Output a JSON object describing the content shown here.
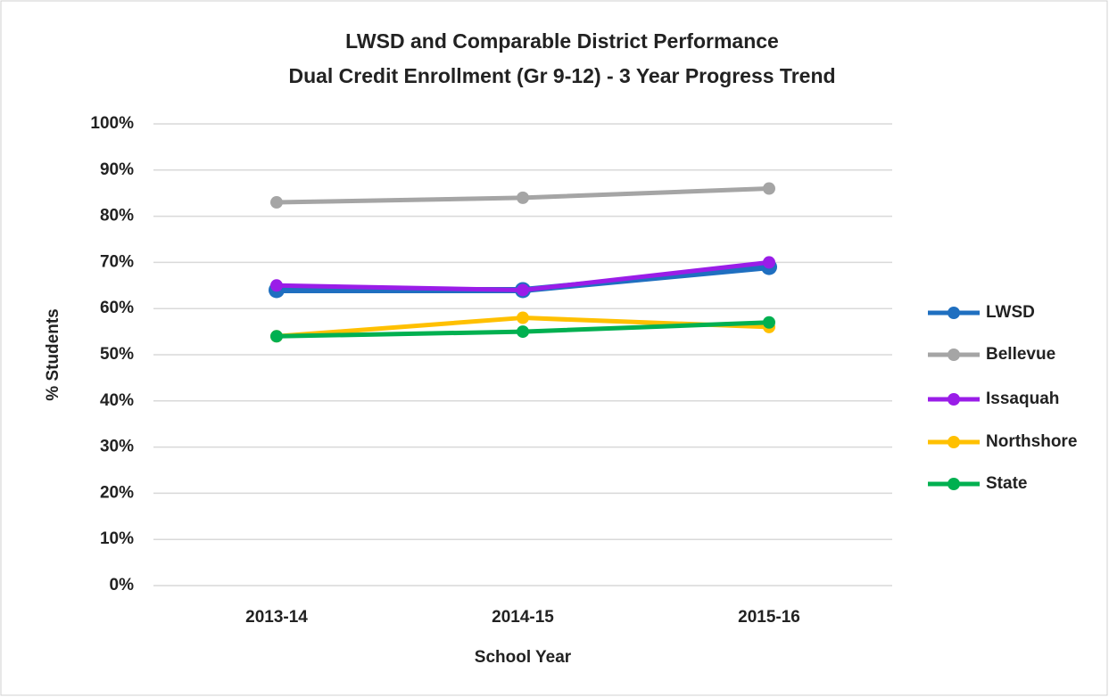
{
  "chart_data": {
    "type": "line",
    "title": "LWSD and Comparable District Performance",
    "subtitle": "Dual Credit Enrollment (Gr 9-12) - 3 Year Progress Trend",
    "x_label": "School Year",
    "y_label": "% Students",
    "categories": [
      "2013-14",
      "2014-15",
      "2015-16"
    ],
    "series": [
      {
        "name": "LWSD",
        "color": "#1f6fc0",
        "values": [
          64,
          64,
          69
        ]
      },
      {
        "name": "Bellevue",
        "color": "#a5a5a5",
        "values": [
          83,
          84,
          86
        ]
      },
      {
        "name": "Issaquah",
        "color": "#9a1de8",
        "values": [
          65,
          64,
          70
        ]
      },
      {
        "name": "Northshore",
        "color": "#ffc000",
        "values": [
          54,
          58,
          56
        ]
      },
      {
        "name": "State",
        "color": "#00b050",
        "values": [
          54,
          55,
          57
        ]
      }
    ],
    "ylim": [
      0,
      100
    ],
    "yticks": [
      {
        "value": 0,
        "label": "0%"
      },
      {
        "value": 10,
        "label": "10%"
      },
      {
        "value": 20,
        "label": "20%"
      },
      {
        "value": 30,
        "label": "30%"
      },
      {
        "value": 40,
        "label": "40%"
      },
      {
        "value": 50,
        "label": "50%"
      },
      {
        "value": 60,
        "label": "60%"
      },
      {
        "value": 70,
        "label": "70%"
      },
      {
        "value": 80,
        "label": "80%"
      },
      {
        "value": 90,
        "label": "90%"
      },
      {
        "value": 100,
        "label": "100%"
      }
    ],
    "grid": true,
    "legend": "right"
  }
}
